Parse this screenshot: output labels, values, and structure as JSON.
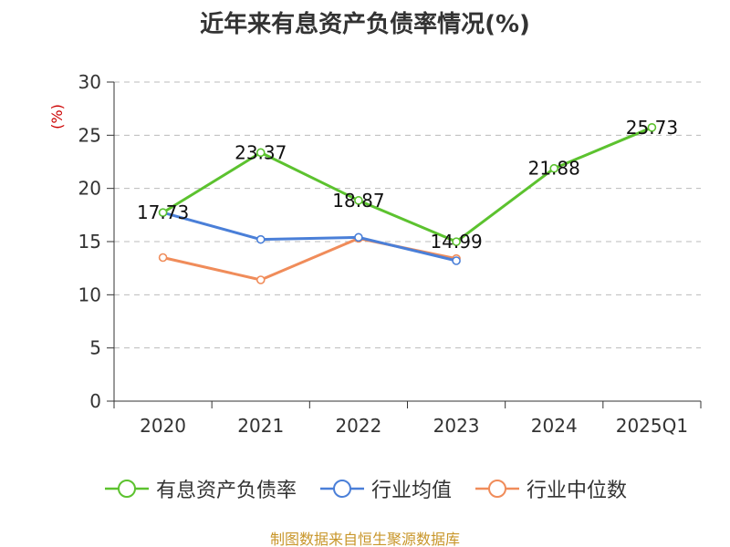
{
  "title": "近年来有息资产负债率情况(%)",
  "y_unit": "(%)",
  "source": "制图数据来自恒生聚源数据库",
  "colors": {
    "unit": "#cc0000",
    "source": "#c8962a",
    "grid": "#bbbbbb",
    "axis": "#333333"
  },
  "chart_data": {
    "type": "line",
    "categories": [
      "2020",
      "2021",
      "2022",
      "2023",
      "2024",
      "2025Q1"
    ],
    "ylim": [
      0,
      30
    ],
    "yticks": [
      0,
      5,
      10,
      15,
      20,
      25,
      30
    ],
    "grid": true,
    "legend_position": "bottom",
    "series": [
      {
        "name": "有息资产负债率",
        "color": "#5cc22f",
        "values": [
          17.73,
          23.37,
          18.87,
          14.99,
          21.88,
          25.73
        ],
        "labels": [
          "17.73",
          "23.37",
          "18.87",
          "14.99",
          "21.88",
          "25.73"
        ]
      },
      {
        "name": "行业均值",
        "color": "#4a7fd8",
        "values": [
          17.73,
          15.2,
          15.4,
          13.2,
          null,
          null
        ]
      },
      {
        "name": "行业中位数",
        "color": "#f08c5a",
        "values": [
          13.5,
          11.4,
          15.3,
          13.4,
          null,
          null
        ]
      }
    ]
  }
}
